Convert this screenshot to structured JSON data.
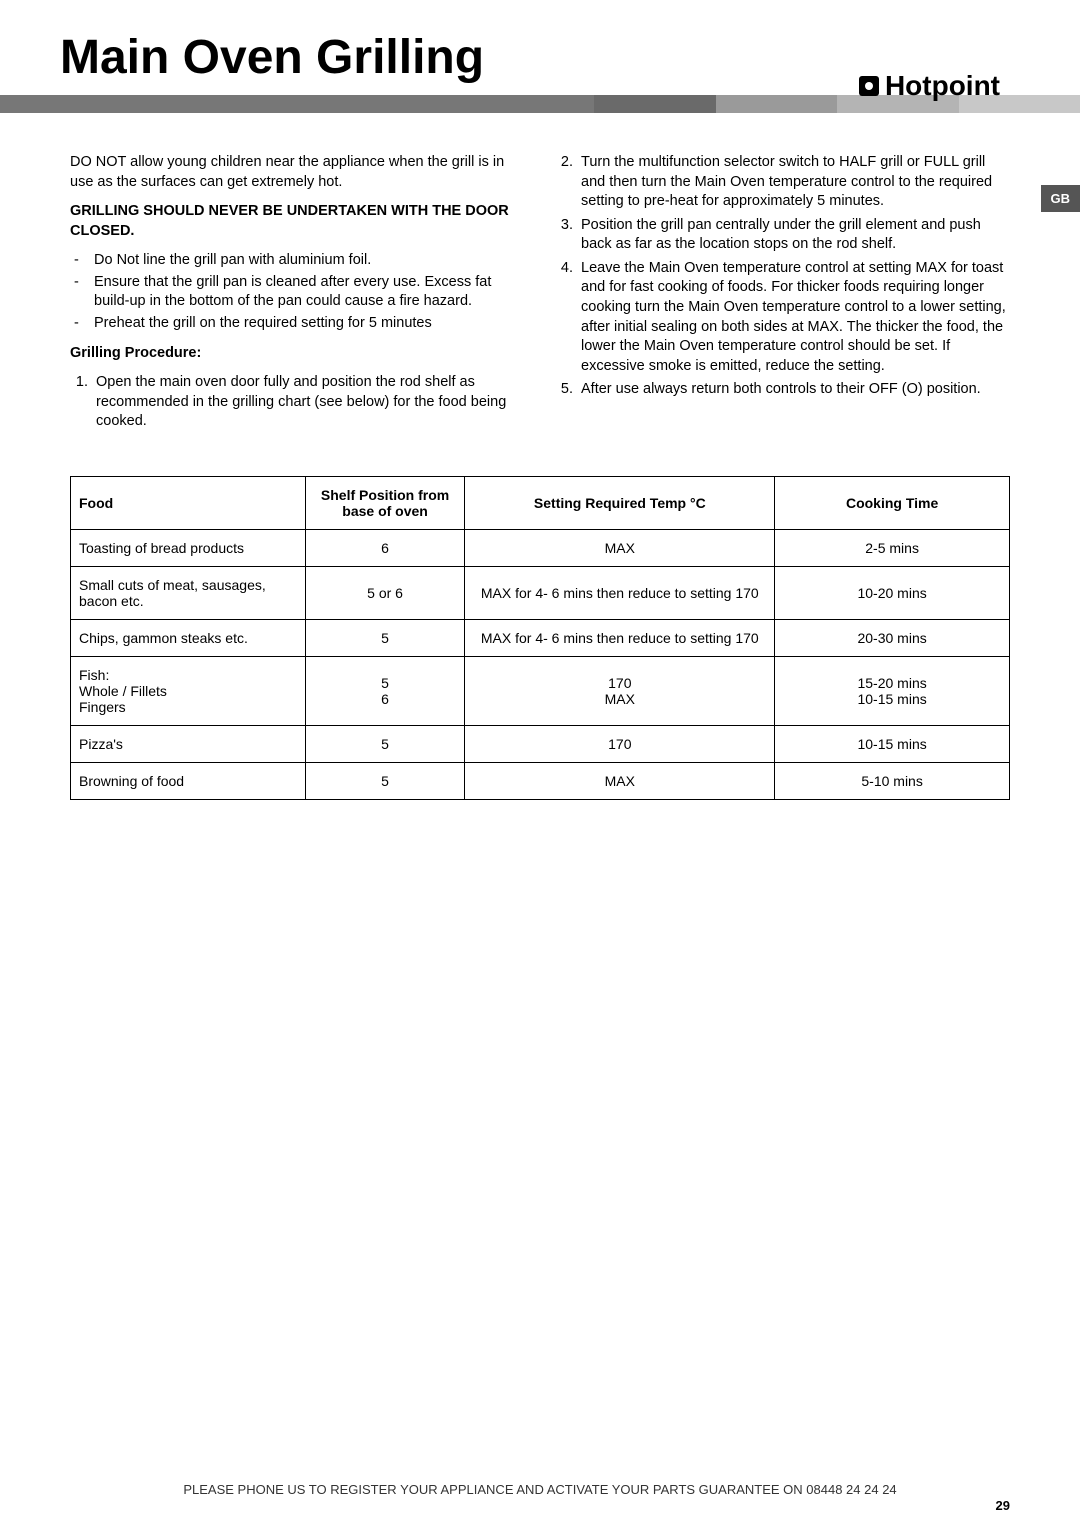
{
  "header": {
    "title": "Main Oven Grilling",
    "brand": "Hotpoint"
  },
  "banner_colors": [
    "#6a6a6a",
    "#9a9a9a",
    "#b2b2b2",
    "#c8c8c8"
  ],
  "gb_label": "GB",
  "left_col": {
    "intro": "DO NOT allow young children near the appliance when the grill is in use as the surfaces can get extremely hot.",
    "warning": "GRILLING SHOULD NEVER BE UNDERTAKEN WITH THE DOOR CLOSED.",
    "bullets": [
      "Do Not line the grill pan with aluminium foil.",
      "Ensure that the grill pan is cleaned after every use. Excess fat build-up in the bottom of the pan could cause a fire hazard.",
      "Preheat the grill on the required setting for 5 minutes"
    ],
    "proc_head": "Grilling Procedure:",
    "proc1_n": "1.",
    "proc1": "Open the main oven door fully and position the rod shelf as recommended in the grilling chart (see below) for the food being cooked."
  },
  "right_col": {
    "items": [
      {
        "n": "2.",
        "t": "Turn the multifunction selector switch to HALF grill or FULL grill and then turn the Main Oven temperature control to the required setting to pre-heat for approximately 5 minutes."
      },
      {
        "n": "3.",
        "t": "Position the grill pan centrally under the grill element and push back as far as the location stops on the rod shelf."
      },
      {
        "n": "4.",
        "t": "Leave the Main Oven temperature control  at setting MAX for toast and for fast cooking of foods. For thicker foods requiring longer cooking turn the Main Oven temperature control to a  lower setting, after initial sealing on both  sides at  MAX. The thicker the food, the lower  the Main Oven temperature control should be set. If excessive  smoke is emitted, reduce the setting."
      },
      {
        "n": "5.",
        "t": "After use always return both controls to their OFF (O) position."
      }
    ]
  },
  "table": {
    "headers": {
      "food": "Food",
      "shelf": "Shelf Position from base of oven",
      "setting": "Setting Required Temp °C",
      "time": "Cooking Time"
    },
    "rows": [
      {
        "food": "Toasting of bread products",
        "shelf": "6",
        "setting": "MAX",
        "time": "2-5 mins"
      },
      {
        "food": "Small cuts of meat, sausages, bacon etc.",
        "shelf": "5 or 6",
        "setting": "MAX for 4- 6 mins then reduce to setting 170",
        "time": "10-20 mins"
      },
      {
        "food": "Chips, gammon steaks etc.",
        "shelf": "5",
        "setting": "MAX for 4- 6 mins then reduce to setting 170",
        "time": "20-30 mins"
      },
      {
        "food": "Fish:\nWhole / Fillets\nFingers",
        "shelf": "5\n6",
        "setting": "170\nMAX",
        "time": "15-20 mins\n10-15 mins"
      },
      {
        "food": "Pizza's",
        "shelf": "5",
        "setting": "170",
        "time": "10-15 mins"
      },
      {
        "food": "Browning of food",
        "shelf": "5",
        "setting": "MAX",
        "time": "5-10 mins"
      }
    ]
  },
  "footer": "PLEASE PHONE US TO REGISTER YOUR APPLIANCE  AND ACTIVATE YOUR PARTS GUARANTEE ON 08448 24 24 24",
  "page_num": "29"
}
